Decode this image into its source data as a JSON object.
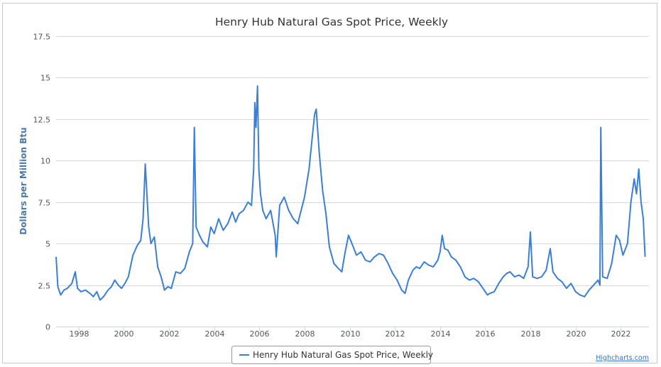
{
  "chart_data": {
    "type": "line",
    "title": "Henry Hub Natural Gas Spot Price, Weekly",
    "ylabel": "Dollars per Million Btu",
    "xlabel": "",
    "ylim": [
      0,
      17.5
    ],
    "xlim": [
      1997.0,
      2023.25
    ],
    "y_ticks": [
      "0",
      "2.5",
      "5",
      "7.5",
      "10",
      "12.5",
      "15",
      "17.5"
    ],
    "x_ticks": [
      "1998",
      "2000",
      "2002",
      "2004",
      "2006",
      "2008",
      "2010",
      "2012",
      "2014",
      "2016",
      "2018",
      "2020",
      "2022"
    ],
    "grid": true,
    "legend_position": "bottom-center",
    "series": [
      {
        "name": "Henry Hub Natural Gas Spot Price, Weekly",
        "color": "#3a7ed6",
        "x": [
          1997.0,
          1997.08,
          1997.2,
          1997.35,
          1997.5,
          1997.7,
          1997.85,
          1997.95,
          1998.1,
          1998.3,
          1998.5,
          1998.65,
          1998.8,
          1998.95,
          1999.1,
          1999.3,
          1999.45,
          1999.6,
          1999.75,
          1999.9,
          2000.05,
          2000.2,
          2000.4,
          2000.6,
          2000.75,
          2000.85,
          2000.95,
          2001.02,
          2001.1,
          2001.2,
          2001.35,
          2001.5,
          2001.65,
          2001.8,
          2001.95,
          2002.1,
          2002.3,
          2002.5,
          2002.7,
          2002.9,
          2003.05,
          2003.12,
          2003.2,
          2003.35,
          2003.5,
          2003.7,
          2003.85,
          2004.0,
          2004.2,
          2004.4,
          2004.6,
          2004.8,
          2004.95,
          2005.1,
          2005.3,
          2005.5,
          2005.65,
          2005.75,
          2005.8,
          2005.85,
          2005.92,
          2005.98,
          2006.05,
          2006.15,
          2006.3,
          2006.5,
          2006.7,
          2006.75,
          2006.9,
          2007.1,
          2007.3,
          2007.5,
          2007.7,
          2007.85,
          2008.0,
          2008.2,
          2008.35,
          2008.45,
          2008.52,
          2008.65,
          2008.8,
          2008.95,
          2009.1,
          2009.3,
          2009.5,
          2009.65,
          2009.8,
          2009.95,
          2010.1,
          2010.3,
          2010.5,
          2010.7,
          2010.9,
          2011.1,
          2011.3,
          2011.5,
          2011.7,
          2011.9,
          2012.1,
          2012.3,
          2012.45,
          2012.6,
          2012.8,
          2012.95,
          2013.1,
          2013.3,
          2013.5,
          2013.7,
          2013.9,
          2014.0,
          2014.1,
          2014.2,
          2014.35,
          2014.5,
          2014.7,
          2014.9,
          2015.1,
          2015.3,
          2015.5,
          2015.7,
          2015.9,
          2016.1,
          2016.2,
          2016.4,
          2016.6,
          2016.8,
          2016.95,
          2017.1,
          2017.3,
          2017.5,
          2017.7,
          2017.9,
          2018.0,
          2018.1,
          2018.3,
          2018.5,
          2018.7,
          2018.88,
          2019.0,
          2019.2,
          2019.4,
          2019.6,
          2019.8,
          2020.0,
          2020.2,
          2020.4,
          2020.6,
          2020.8,
          2021.0,
          2021.08,
          2021.12,
          2021.2,
          2021.4,
          2021.6,
          2021.8,
          2021.95,
          2022.1,
          2022.3,
          2022.45,
          2022.6,
          2022.7,
          2022.8,
          2022.9,
          2023.0,
          2023.08
        ]
      }
    ]
  },
  "legend": {
    "label": "Henry Hub Natural Gas Spot Price, Weekly"
  },
  "credits": {
    "text": "Highcharts.com"
  }
}
